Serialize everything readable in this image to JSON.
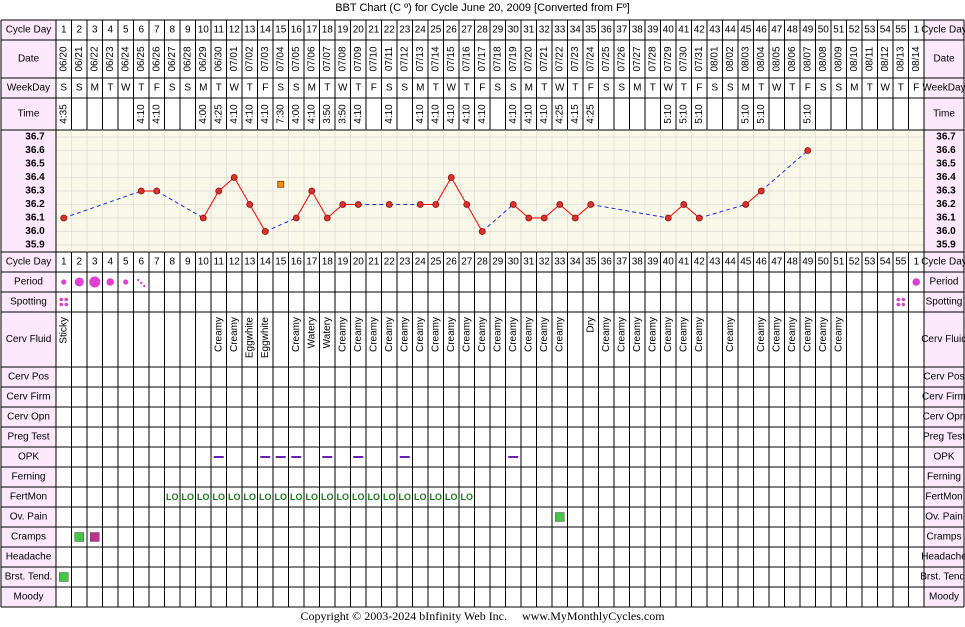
{
  "title": "BBT Chart (C º) for Cycle June 20, 2009  [Converted from Fº]",
  "footer": {
    "copyright": "Copyright © 2003-2024 bInfinity Web Inc.",
    "site": "www.MyMonthlyCycles.com"
  },
  "row_labels": {
    "cycle_day": "Cycle Day",
    "date": "Date",
    "weekday": "WeekDay",
    "time": "Time",
    "period": "Period",
    "spotting": "Spotting",
    "cerv_fluid": "Cerv Fluid",
    "cerv_pos": "Cerv Pos",
    "cerv_firm": "Cerv Firm",
    "cerv_opn": "Cerv Opn",
    "preg_test": "Preg Test",
    "opk": "OPK",
    "ferning": "Ferning",
    "fertmon": "FertMon",
    "ov_pain": "Ov. Pain",
    "cramps": "Cramps",
    "headache": "Headache",
    "brst_tend": "Brst. Tend.",
    "moody": "Moody"
  },
  "colors": {
    "grid": "#000000",
    "label_bg": "#fbe9fb",
    "temp_bg": "#faf8e8",
    "line": "#ff0000",
    "dash": "#1a2ee0",
    "marker": "#e0302a",
    "period": "#e040d0",
    "green": "#44c844",
    "purple": "#c03090",
    "opk": "#6a1fb0",
    "fertmon": "#1a7a1a",
    "cover": "#ff8c00"
  },
  "chart_data": {
    "type": "line",
    "title": "BBT Chart (C º) for Cycle June 20, 2009  [Converted from Fº]",
    "xlabel": "Cycle Day",
    "ylabel": "",
    "ylim": [
      35.9,
      36.7
    ],
    "yticks": [
      "36.7",
      "36.6",
      "36.5",
      "36.4",
      "36.3",
      "36.2",
      "36.1",
      "36.0",
      "35.9"
    ],
    "cycle_days": [
      "1",
      "2",
      "3",
      "4",
      "5",
      "6",
      "7",
      "8",
      "9",
      "10",
      "11",
      "12",
      "13",
      "14",
      "15",
      "16",
      "17",
      "18",
      "19",
      "20",
      "21",
      "22",
      "23",
      "24",
      "25",
      "26",
      "27",
      "28",
      "29",
      "30",
      "31",
      "32",
      "33",
      "34",
      "35",
      "36",
      "37",
      "38",
      "39",
      "40",
      "41",
      "42",
      "43",
      "44",
      "45",
      "46",
      "47",
      "48",
      "49",
      "50",
      "51",
      "52",
      "53",
      "54",
      "55",
      "1"
    ],
    "dates": [
      "06/20",
      "06/21",
      "06/22",
      "06/23",
      "06/24",
      "06/25",
      "06/26",
      "06/27",
      "06/28",
      "06/29",
      "06/30",
      "07/01",
      "07/02",
      "07/03",
      "07/04",
      "07/05",
      "07/06",
      "07/07",
      "07/08",
      "07/09",
      "07/10",
      "07/11",
      "07/12",
      "07/13",
      "07/14",
      "07/15",
      "07/16",
      "07/17",
      "07/18",
      "07/19",
      "07/20",
      "07/21",
      "07/22",
      "07/23",
      "07/24",
      "07/25",
      "07/26",
      "07/27",
      "07/28",
      "07/29",
      "07/30",
      "07/31",
      "08/01",
      "08/02",
      "08/03",
      "08/04",
      "08/05",
      "08/06",
      "08/07",
      "08/08",
      "08/09",
      "08/10",
      "08/11",
      "08/12",
      "08/13",
      "08/14"
    ],
    "weekdays": [
      "S",
      "S",
      "M",
      "T",
      "W",
      "T",
      "F",
      "S",
      "S",
      "M",
      "T",
      "W",
      "T",
      "F",
      "S",
      "S",
      "M",
      "T",
      "W",
      "T",
      "F",
      "S",
      "S",
      "M",
      "T",
      "W",
      "T",
      "F",
      "S",
      "S",
      "M",
      "T",
      "W",
      "T",
      "F",
      "S",
      "S",
      "M",
      "T",
      "W",
      "T",
      "F",
      "S",
      "S",
      "M",
      "T",
      "W",
      "T",
      "F",
      "S",
      "S",
      "M",
      "T",
      "W",
      "T",
      "F"
    ],
    "times": [
      "4:35",
      "",
      "",
      "",
      "",
      "4:10",
      "4:10",
      "",
      "",
      "4:00",
      "4:25",
      "4:10",
      "4:10",
      "4:10",
      "7:30",
      "4:00",
      "4:10",
      "3:50",
      "3:50",
      "4:10",
      "",
      "4:10",
      "",
      "4:10",
      "4:10",
      "4:10",
      "4:10",
      "4:10",
      "",
      "4:10",
      "4:10",
      "4:10",
      "4:25",
      "4:15",
      "4:25",
      "",
      "",
      "",
      "",
      "5:10",
      "5:10",
      "5:10",
      "",
      "",
      "5:10",
      "5:10",
      "",
      "",
      "5:10",
      "",
      "",
      "",
      "",
      "",
      "",
      ""
    ],
    "series": [
      {
        "temps": [
          36.1,
          null,
          null,
          null,
          null,
          36.3,
          36.3,
          null,
          null,
          36.1,
          36.3,
          36.4,
          36.2,
          36.0,
          null,
          36.1,
          36.3,
          36.1,
          36.2,
          36.2,
          null,
          36.2,
          null,
          36.2,
          36.2,
          36.4,
          36.2,
          36.0,
          null,
          36.2,
          36.1,
          36.1,
          36.2,
          36.1,
          36.2,
          null,
          null,
          null,
          null,
          36.1,
          36.2,
          36.1,
          null,
          null,
          36.2,
          36.3,
          null,
          null,
          36.6,
          null,
          null,
          null,
          null,
          null,
          null,
          null
        ]
      }
    ],
    "cover_point": {
      "day": 15,
      "temp": 36.35
    },
    "cerv_fluid": [
      "Sticky",
      "",
      "",
      "",
      "",
      "",
      "",
      "",
      "",
      "",
      "Creamy",
      "Creamy",
      "Eggwhite",
      "Eggwhite",
      "",
      "Creamy",
      "Watery",
      "Watery",
      "Creamy",
      "Creamy",
      "Creamy",
      "Creamy",
      "Creamy",
      "Creamy",
      "Creamy",
      "Creamy",
      "Creamy",
      "Creamy",
      "Creamy",
      "Creamy",
      "Creamy",
      "Creamy",
      "Creamy",
      "",
      "Dry",
      "Creamy",
      "Creamy",
      "Creamy",
      "Creamy",
      "Creamy",
      "Creamy",
      "Creamy",
      "",
      "Creamy",
      "",
      "Creamy",
      "Creamy",
      "Creamy",
      "Creamy",
      "Creamy",
      "Creamy",
      "",
      "",
      "",
      "",
      ""
    ],
    "period": [
      2,
      4,
      5,
      3,
      2,
      1,
      0,
      0,
      0,
      0,
      0,
      0,
      0,
      0,
      0,
      0,
      0,
      0,
      0,
      0,
      0,
      0,
      0,
      0,
      0,
      0,
      0,
      0,
      0,
      0,
      0,
      0,
      0,
      0,
      0,
      0,
      0,
      0,
      0,
      0,
      0,
      0,
      0,
      0,
      0,
      0,
      0,
      0,
      0,
      0,
      0,
      0,
      0,
      0,
      0,
      3
    ],
    "spotting": [
      1,
      0,
      0,
      0,
      0,
      0,
      0,
      0,
      0,
      0,
      0,
      0,
      0,
      0,
      0,
      0,
      0,
      0,
      0,
      0,
      0,
      0,
      0,
      0,
      0,
      0,
      0,
      0,
      0,
      0,
      0,
      0,
      0,
      0,
      0,
      0,
      0,
      0,
      0,
      0,
      0,
      0,
      0,
      0,
      0,
      0,
      0,
      0,
      0,
      0,
      0,
      0,
      0,
      0,
      1,
      0
    ],
    "opk_days": [
      11,
      14,
      15,
      16,
      18,
      20,
      23,
      30
    ],
    "fertmon_days": [
      8,
      9,
      10,
      11,
      12,
      13,
      14,
      15,
      16,
      17,
      18,
      19,
      20,
      21,
      22,
      23,
      24,
      25,
      26,
      27
    ],
    "fertmon_text": "LO",
    "ov_pain_days": [
      33
    ],
    "cramps_days": [
      {
        "day": 2,
        "color": "green"
      },
      {
        "day": 3,
        "color": "purple"
      }
    ],
    "brst_tend_days": [
      1
    ]
  }
}
